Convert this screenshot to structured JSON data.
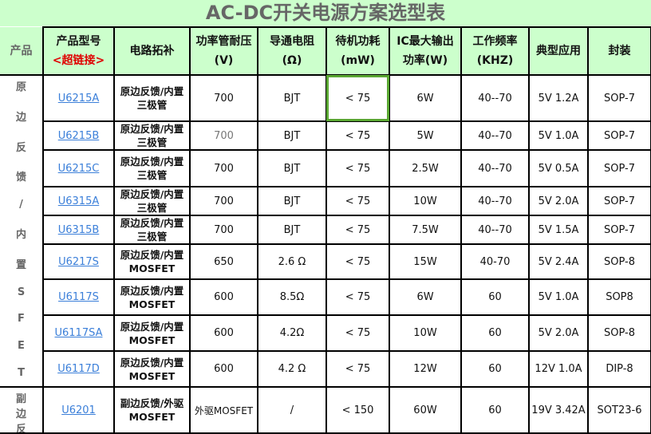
{
  "title": "AC-DC开关电源方案选型表",
  "headers": {
    "group": "产品",
    "model": "产品型号",
    "model_link": "<超链接>",
    "topology": "电路拓补",
    "voltage": "功率管耐压",
    "voltage_unit": "(V)",
    "resistance": "导通电阻",
    "resistance_unit": "(Ω)",
    "standby": "待机功耗",
    "standby_unit": "(mW)",
    "power": "IC最大输出",
    "power_unit": "功率(W)",
    "freq": "工作频率",
    "freq_unit": "(KHZ)",
    "app": "典型应用",
    "package": "封装"
  },
  "groups": [
    {
      "chars": [
        "原",
        "边",
        "反",
        "馈",
        "/",
        "内",
        "置",
        "S",
        "F",
        "E",
        "T"
      ]
    },
    {
      "chars": [
        "副",
        "边",
        "反"
      ]
    }
  ],
  "rows": [
    {
      "model": "U6215A",
      "topology": "原边反馈/内置三极管",
      "voltage": "700",
      "resistance": "BJT",
      "standby": "< 75",
      "power": "6W",
      "freq": "40--70",
      "app": "5V 1.2A",
      "package": "SOP-7"
    },
    {
      "model": "U6215B",
      "topology": "原边反馈/内置三极管",
      "voltage": "700",
      "resistance": "BJT",
      "standby": "< 75",
      "power": "5W",
      "freq": "40--70",
      "app": "5V 1.0A",
      "package": "SOP-7"
    },
    {
      "model": "U6215C",
      "topology": "原边反馈/内置三极管",
      "voltage": "700",
      "resistance": "BJT",
      "standby": "< 75",
      "power": "2.5W",
      "freq": "40--70",
      "app": "5V 0.5A",
      "package": "SOP-7"
    },
    {
      "model": "U6315A",
      "topology": "原边反馈/内置三极管",
      "voltage": "700",
      "resistance": "BJT",
      "standby": "< 75",
      "power": "10W",
      "freq": "40--70",
      "app": "5V  2.0A",
      "package": "SOP-7"
    },
    {
      "model": "U6315B",
      "topology": "原边反馈/内置三极管",
      "voltage": "700",
      "resistance": "BJT",
      "standby": "< 75",
      "power": "7.5W",
      "freq": "40--70",
      "app": "5V 1.5A",
      "package": "SOP-7"
    },
    {
      "model": "U6217S",
      "topology": "原边反馈/内置MOSFET",
      "voltage": "650",
      "resistance": "2.6 Ω",
      "standby": "< 75",
      "power": "15W",
      "freq": "40-70",
      "app": "5V 2.4A",
      "package": "SOP-8"
    },
    {
      "model": "U6117S",
      "topology": "原边反馈/内置MOSFET",
      "voltage": "600",
      "resistance": "8.5Ω",
      "standby": "< 75",
      "power": "6W",
      "freq": "60",
      "app": "5V 1.0A",
      "package": "SOP8"
    },
    {
      "model": "U6117SA",
      "topology": "原边反馈/内置MOSFET",
      "voltage": "600",
      "resistance": "4.2Ω",
      "standby": "< 75",
      "power": "10W",
      "freq": "60",
      "app": "5V  2.0A",
      "package": "SOP-8"
    },
    {
      "model": "U6117D",
      "topology": "原边反馈/内置MOSFET",
      "voltage": "600",
      "resistance": "4.2 Ω",
      "standby": "< 75",
      "power": "12W",
      "freq": "60",
      "app": "12V 1.0A",
      "package": "DIP-8"
    },
    {
      "model": "U6201",
      "topology": "副边反馈/外驱MOSFET",
      "voltage": "外驱MOSFET",
      "resistance": "/",
      "standby": "< 150",
      "power": "60W",
      "freq": "60",
      "app": "19V 3.42A",
      "package": "SOT23-6"
    }
  ],
  "colors": {
    "header_bg": "#ccffcc",
    "link": "#3b7fd9",
    "selection": "#5aa832",
    "link_label": "#e00000"
  }
}
